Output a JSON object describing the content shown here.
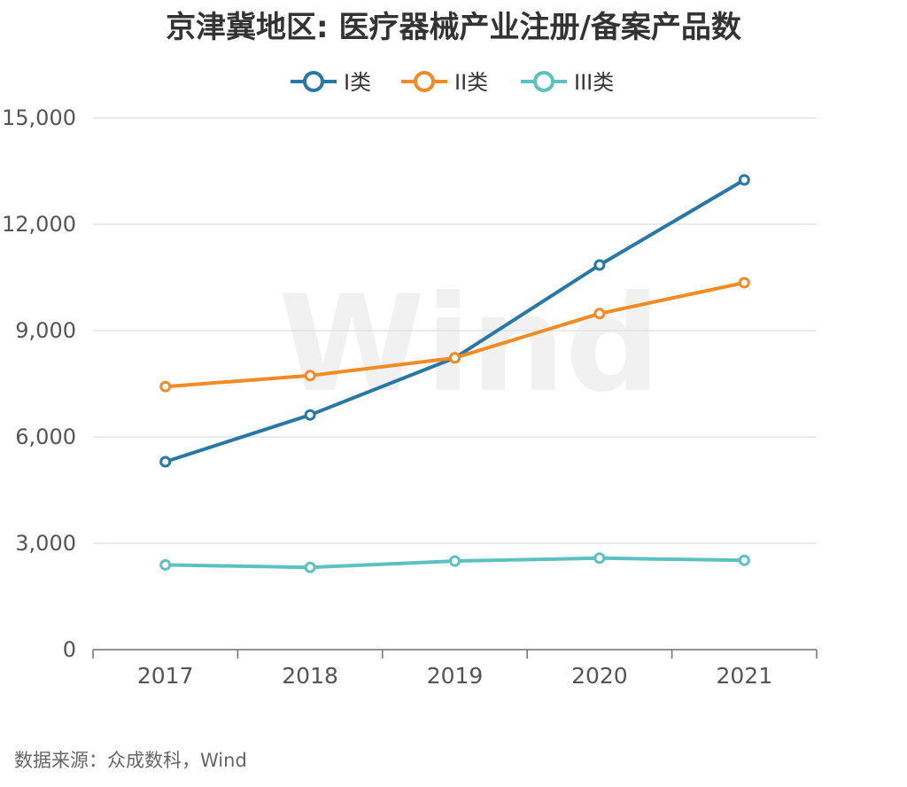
{
  "chart_data": {
    "type": "line",
    "title": "京津冀地区: 医疗器械产业注册/备案产品数",
    "categories": [
      "2017",
      "2018",
      "2019",
      "2020",
      "2021"
    ],
    "series": [
      {
        "name": "I类",
        "color": "#2878a5",
        "values": [
          5300,
          6620,
          8230,
          10850,
          13250
        ]
      },
      {
        "name": "II类",
        "color": "#f18c25",
        "values": [
          7420,
          7730,
          8230,
          9480,
          10350
        ]
      },
      {
        "name": "III类",
        "color": "#5cc1c0",
        "values": [
          2390,
          2320,
          2500,
          2580,
          2520
        ]
      }
    ],
    "ylim": [
      0,
      15000
    ],
    "yticks": [
      "0",
      "3,000",
      "6,000",
      "9,000",
      "12,000",
      "15,000"
    ],
    "ytick_values": [
      0,
      3000,
      6000,
      9000,
      12000,
      15000
    ],
    "grid": true,
    "legend_position": "top-center",
    "watermark": "Wind",
    "source": "数据来源：众成数科，Wind"
  }
}
